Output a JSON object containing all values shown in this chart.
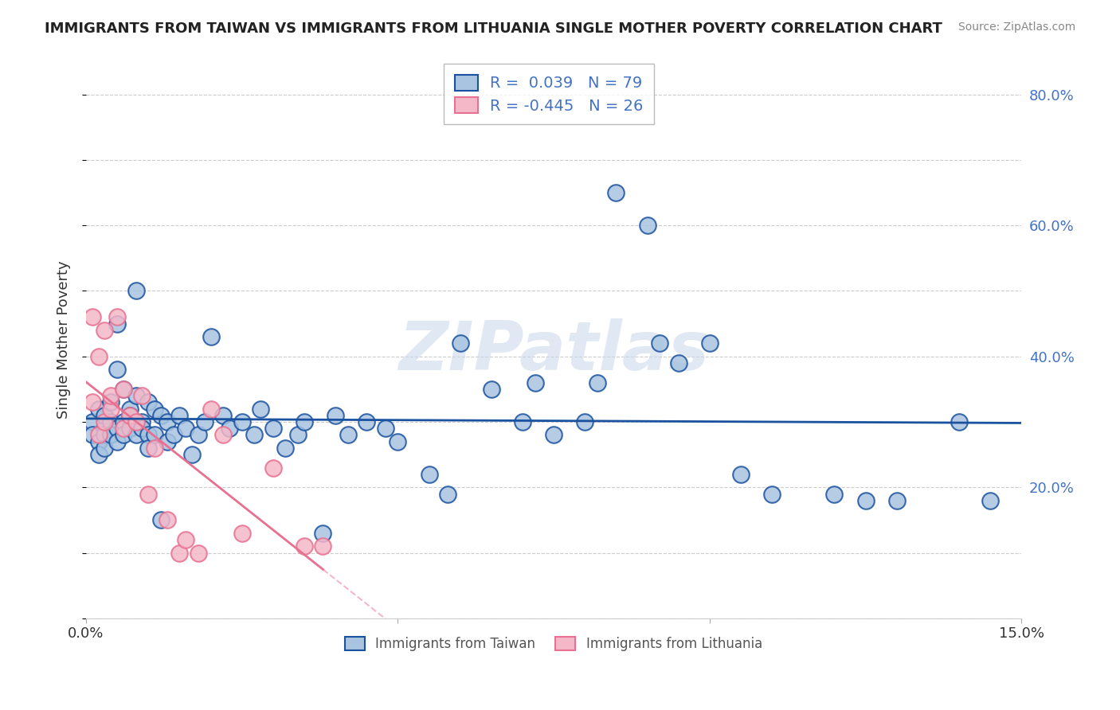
{
  "title": "IMMIGRANTS FROM TAIWAN VS IMMIGRANTS FROM LITHUANIA SINGLE MOTHER POVERTY CORRELATION CHART",
  "source": "Source: ZipAtlas.com",
  "xlabel": "",
  "ylabel": "Single Mother Poverty",
  "x_min": 0.0,
  "x_max": 0.15,
  "y_min": 0.0,
  "y_max": 0.85,
  "y_ticks": [
    0.0,
    0.2,
    0.4,
    0.6,
    0.8
  ],
  "y_tick_labels": [
    "",
    "20.0%",
    "40.0%",
    "60.0%",
    "80.0%"
  ],
  "x_ticks": [
    0.0,
    0.05,
    0.1,
    0.15
  ],
  "x_tick_labels": [
    "0.0%",
    "",
    "",
    "15.0%"
  ],
  "taiwan_R": 0.039,
  "taiwan_N": 79,
  "lithuania_R": -0.445,
  "lithuania_N": 26,
  "taiwan_color": "#a8c4e0",
  "taiwan_line_color": "#1a52a0",
  "lithuania_color": "#f4b8c8",
  "lithuania_line_color": "#e87090",
  "taiwan_scatter_x": [
    0.001,
    0.001,
    0.002,
    0.002,
    0.002,
    0.003,
    0.003,
    0.003,
    0.003,
    0.004,
    0.004,
    0.004,
    0.005,
    0.005,
    0.005,
    0.005,
    0.006,
    0.006,
    0.006,
    0.007,
    0.007,
    0.007,
    0.008,
    0.008,
    0.008,
    0.009,
    0.009,
    0.01,
    0.01,
    0.01,
    0.011,
    0.011,
    0.012,
    0.012,
    0.013,
    0.013,
    0.014,
    0.015,
    0.016,
    0.017,
    0.018,
    0.019,
    0.02,
    0.022,
    0.023,
    0.025,
    0.027,
    0.028,
    0.03,
    0.032,
    0.034,
    0.035,
    0.038,
    0.04,
    0.042,
    0.045,
    0.048,
    0.05,
    0.055,
    0.058,
    0.06,
    0.065,
    0.07,
    0.072,
    0.075,
    0.08,
    0.082,
    0.085,
    0.09,
    0.092,
    0.095,
    0.1,
    0.105,
    0.11,
    0.12,
    0.125,
    0.13,
    0.14,
    0.145
  ],
  "taiwan_scatter_y": [
    0.3,
    0.28,
    0.27,
    0.25,
    0.32,
    0.29,
    0.31,
    0.28,
    0.26,
    0.33,
    0.3,
    0.28,
    0.45,
    0.38,
    0.29,
    0.27,
    0.35,
    0.3,
    0.28,
    0.32,
    0.29,
    0.31,
    0.5,
    0.34,
    0.28,
    0.3,
    0.29,
    0.33,
    0.28,
    0.26,
    0.32,
    0.28,
    0.31,
    0.15,
    0.3,
    0.27,
    0.28,
    0.31,
    0.29,
    0.25,
    0.28,
    0.3,
    0.43,
    0.31,
    0.29,
    0.3,
    0.28,
    0.32,
    0.29,
    0.26,
    0.28,
    0.3,
    0.13,
    0.31,
    0.28,
    0.3,
    0.29,
    0.27,
    0.22,
    0.19,
    0.42,
    0.35,
    0.3,
    0.36,
    0.28,
    0.3,
    0.36,
    0.65,
    0.6,
    0.42,
    0.39,
    0.42,
    0.22,
    0.19,
    0.19,
    0.18,
    0.18,
    0.3,
    0.18
  ],
  "lithuania_scatter_x": [
    0.001,
    0.001,
    0.002,
    0.002,
    0.003,
    0.003,
    0.004,
    0.004,
    0.005,
    0.006,
    0.006,
    0.007,
    0.008,
    0.009,
    0.01,
    0.011,
    0.013,
    0.015,
    0.016,
    0.018,
    0.02,
    0.022,
    0.025,
    0.03,
    0.035,
    0.038
  ],
  "lithuania_scatter_y": [
    0.33,
    0.46,
    0.4,
    0.28,
    0.44,
    0.3,
    0.32,
    0.34,
    0.46,
    0.29,
    0.35,
    0.31,
    0.3,
    0.34,
    0.19,
    0.26,
    0.15,
    0.1,
    0.12,
    0.1,
    0.32,
    0.28,
    0.13,
    0.23,
    0.11,
    0.11
  ],
  "watermark": "ZIPatlas",
  "background_color": "#ffffff",
  "grid_color": "#cccccc",
  "right_axis_color": "#4472c4",
  "legend_box_color": "#e8f0f8"
}
